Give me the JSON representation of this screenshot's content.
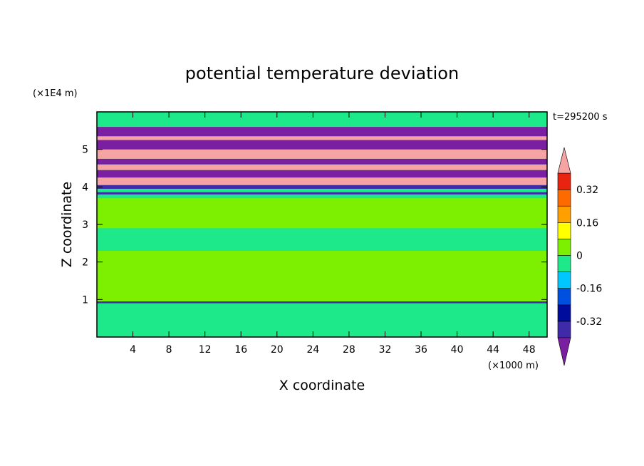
{
  "chart_data": {
    "type": "heatmap",
    "title": "potential temperature deviation",
    "xlabel": "X coordinate",
    "ylabel": "Z coordinate",
    "x_unit": "(×1000 m)",
    "y_unit": "(×1E4 m)",
    "time_label": "t=295200 s",
    "xlim": [
      0,
      50
    ],
    "ylim": [
      0,
      6
    ],
    "x_ticks": [
      4,
      8,
      12,
      16,
      20,
      24,
      28,
      32,
      36,
      40,
      44,
      48
    ],
    "y_ticks": [
      1,
      2,
      3,
      4,
      5
    ],
    "colorbar": {
      "levels": [
        -0.48,
        -0.4,
        -0.32,
        -0.24,
        -0.16,
        -0.08,
        0,
        0.08,
        0.16,
        0.24,
        0.32,
        0.4,
        0.48
      ],
      "colors": [
        "#7a1fa2",
        "#3f2aa8",
        "#000c9c",
        "#0050e0",
        "#00c8ff",
        "#1de88a",
        "#7cf000",
        "#ffff00",
        "#ffa000",
        "#ff6a00",
        "#e8230f",
        "#f5a3a3"
      ],
      "tick_labels": [
        "-0.32",
        "-0.16",
        "0",
        "0.16",
        "0.32"
      ],
      "tick_values": [
        -0.32,
        -0.16,
        0,
        0.16,
        0.32
      ]
    },
    "bands": [
      {
        "z0": 0.0,
        "z1": 0.9,
        "color": "#1de88a"
      },
      {
        "z0": 0.9,
        "z1": 0.95,
        "color": "#3f2aa8"
      },
      {
        "z0": 0.95,
        "z1": 2.3,
        "color": "#7cf000"
      },
      {
        "z0": 2.3,
        "z1": 2.9,
        "color": "#1de88a"
      },
      {
        "z0": 2.9,
        "z1": 3.7,
        "color": "#7cf000"
      },
      {
        "z0": 3.7,
        "z1": 3.8,
        "color": "#1de88a"
      },
      {
        "z0": 3.8,
        "z1": 3.86,
        "color": "#3f2aa8"
      },
      {
        "z0": 3.86,
        "z1": 3.95,
        "color": "#1de88a"
      },
      {
        "z0": 3.95,
        "z1": 4.05,
        "color": "#3f2aa8"
      },
      {
        "z0": 4.05,
        "z1": 4.25,
        "color": "#f5a3a3"
      },
      {
        "z0": 4.25,
        "z1": 4.45,
        "color": "#7a1fa2"
      },
      {
        "z0": 4.45,
        "z1": 4.6,
        "color": "#f5a3a3"
      },
      {
        "z0": 4.6,
        "z1": 4.75,
        "color": "#7a1fa2"
      },
      {
        "z0": 4.75,
        "z1": 5.0,
        "color": "#f5a3a3"
      },
      {
        "z0": 5.0,
        "z1": 5.25,
        "color": "#7a1fa2"
      },
      {
        "z0": 5.25,
        "z1": 5.35,
        "color": "#f5a3a3"
      },
      {
        "z0": 5.35,
        "z1": 5.6,
        "color": "#7a1fa2"
      },
      {
        "z0": 5.6,
        "z1": 6.0,
        "color": "#1de88a"
      }
    ]
  }
}
